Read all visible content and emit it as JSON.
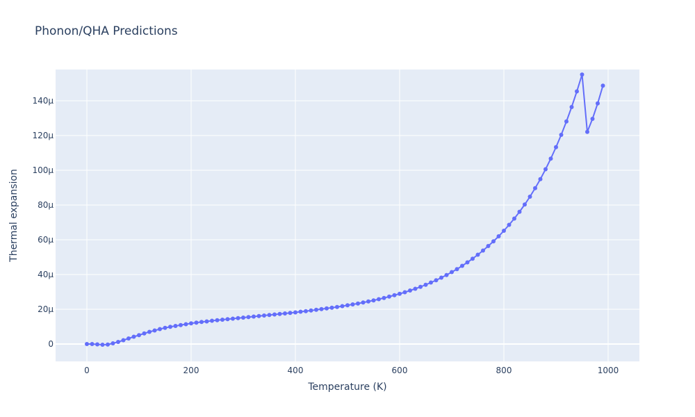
{
  "chart_data": {
    "type": "line",
    "title": "Phonon/QHA Predictions",
    "xlabel": "Temperature (K)",
    "ylabel": "Thermal expansion",
    "xlim": [
      -60,
      1060
    ],
    "ylim": [
      -1e-05,
      0.000158
    ],
    "x_ticks": [
      0,
      200,
      400,
      600,
      800,
      1000
    ],
    "x_tick_labels": [
      "0",
      "200",
      "400",
      "600",
      "800",
      "1000"
    ],
    "y_ticks": [
      0,
      2e-05,
      4e-05,
      6e-05,
      8e-05,
      0.0001,
      0.00012,
      0.00014
    ],
    "y_tick_labels": [
      "0",
      "20μ",
      "40μ",
      "60μ",
      "80μ",
      "100μ",
      "120μ",
      "140μ"
    ],
    "grid": true,
    "series": [
      {
        "color": "#636efa",
        "mode": "lines+markers",
        "x": [
          0,
          10,
          20,
          30,
          40,
          50,
          60,
          70,
          80,
          90,
          100,
          110,
          120,
          130,
          140,
          150,
          160,
          170,
          180,
          190,
          200,
          210,
          220,
          230,
          240,
          250,
          260,
          270,
          280,
          290,
          300,
          310,
          320,
          330,
          340,
          350,
          360,
          370,
          380,
          390,
          400,
          410,
          420,
          430,
          440,
          450,
          460,
          470,
          480,
          490,
          500,
          510,
          520,
          530,
          540,
          550,
          560,
          570,
          580,
          590,
          600,
          610,
          620,
          630,
          640,
          650,
          660,
          670,
          680,
          690,
          700,
          710,
          720,
          730,
          740,
          750,
          760,
          770,
          780,
          790,
          800,
          810,
          820,
          830,
          840,
          850,
          860,
          870,
          880,
          890,
          900,
          910,
          920,
          930,
          940,
          950,
          960,
          970,
          980,
          990
        ],
        "y": [
          0,
          0,
          -2e-07,
          -4e-07,
          -3e-07,
          4e-07,
          1.2e-06,
          2.2e-06,
          3.2e-06,
          4.2e-06,
          5.1e-06,
          6.1e-06,
          7e-06,
          7.8e-06,
          8.6e-06,
          9.3e-06,
          9.9e-06,
          1.04e-05,
          1.09e-05,
          1.14e-05,
          1.19e-05,
          1.23e-05,
          1.27e-05,
          1.3e-05,
          1.34e-05,
          1.37e-05,
          1.4e-05,
          1.43e-05,
          1.46e-05,
          1.49e-05,
          1.52e-05,
          1.55e-05,
          1.58e-05,
          1.61e-05,
          1.64e-05,
          1.67e-05,
          1.7e-05,
          1.73e-05,
          1.76e-05,
          1.79e-05,
          1.82e-05,
          1.86e-05,
          1.89e-05,
          1.93e-05,
          1.97e-05,
          2.01e-05,
          2.05e-05,
          2.09e-05,
          2.13e-05,
          2.18e-05,
          2.23e-05,
          2.28e-05,
          2.33e-05,
          2.39e-05,
          2.45e-05,
          2.51e-05,
          2.58e-05,
          2.65e-05,
          2.73e-05,
          2.81e-05,
          2.89e-05,
          2.98e-05,
          3.08e-05,
          3.18e-05,
          3.29e-05,
          3.41e-05,
          3.54e-05,
          3.67e-05,
          3.82e-05,
          3.97e-05,
          4.14e-05,
          4.31e-05,
          4.5e-05,
          4.7e-05,
          4.91e-05,
          5.14e-05,
          5.38e-05,
          5.64e-05,
          5.91e-05,
          6.2e-05,
          6.52e-05,
          6.86e-05,
          7.22e-05,
          7.61e-05,
          8.03e-05,
          8.48e-05,
          8.97e-05,
          9.49e-05,
          0.0001006,
          0.0001067,
          0.0001133,
          0.0001204,
          0.0001281,
          0.0001364,
          0.0001454,
          0.0001551,
          0.0001221,
          0.0001296,
          0.0001385,
          0.0001487
        ]
      }
    ]
  }
}
